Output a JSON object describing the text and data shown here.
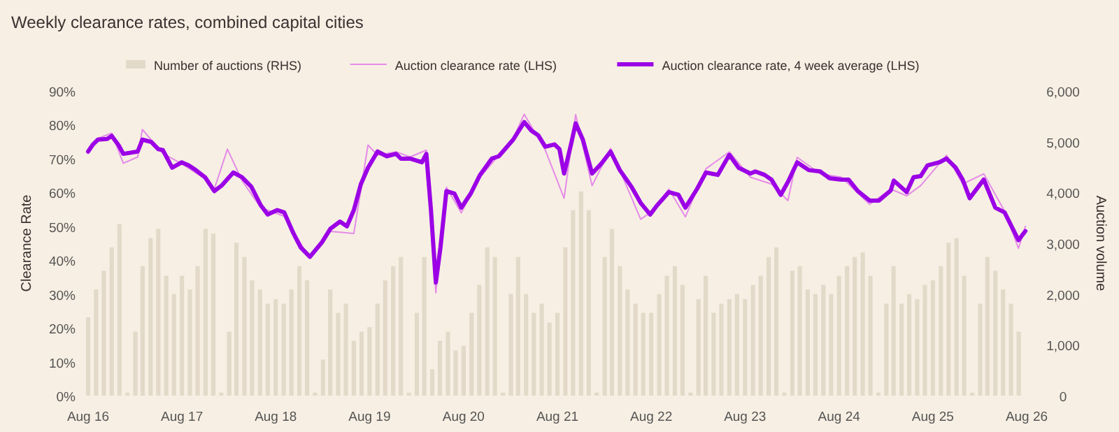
{
  "chart_data": {
    "type": "line",
    "title": "Weekly clearance rates, combined capital cities",
    "ylabel": "Clearance Rate",
    "y2label": "Auction volume",
    "legend": "top",
    "xlim": [
      "2016-08-01",
      "2026-08-01"
    ],
    "xticks": [
      {
        "value": "2016-08-01",
        "label": "Aug 16"
      },
      {
        "value": "2017-08-01",
        "label": "Aug 17"
      },
      {
        "value": "2018-08-01",
        "label": "Aug 18"
      },
      {
        "value": "2019-08-01",
        "label": "Aug 19"
      },
      {
        "value": "2020-08-01",
        "label": "Aug 20"
      },
      {
        "value": "2021-08-01",
        "label": "Aug 21"
      },
      {
        "value": "2022-08-01",
        "label": "Aug 22"
      },
      {
        "value": "2023-08-01",
        "label": "Aug 23"
      },
      {
        "value": "2024-08-01",
        "label": "Aug 24"
      },
      {
        "value": "2025-08-01",
        "label": "Aug 25"
      },
      {
        "value": "2026-08-01",
        "label": "Aug 26"
      }
    ],
    "ylim": [
      0,
      90
    ],
    "yticks": [
      {
        "value": 0,
        "label": "0%"
      },
      {
        "value": 10,
        "label": "10%"
      },
      {
        "value": 20,
        "label": "20%"
      },
      {
        "value": 30,
        "label": "30%"
      },
      {
        "value": 40,
        "label": "40%"
      },
      {
        "value": 50,
        "label": "50%"
      },
      {
        "value": 60,
        "label": "60%"
      },
      {
        "value": 70,
        "label": "70%"
      },
      {
        "value": 80,
        "label": "80%"
      },
      {
        "value": 90,
        "label": "90%"
      }
    ],
    "y2lim": [
      0,
      6000
    ],
    "y2ticks": [
      0,
      {
        "value": 1000,
        "label": "1,000"
      },
      {
        "value": 2000,
        "label": "2,000"
      },
      {
        "value": 3000,
        "label": "3,000"
      },
      {
        "value": 4000,
        "label": "4,000"
      },
      {
        "value": 5000,
        "label": "5,000"
      },
      {
        "value": 6000,
        "label": "6,000"
      }
    ],
    "series": [
      {
        "name": "Number of auctions (RHS)",
        "type": "bar",
        "axis": "y2",
        "color": "#e3d9c9",
        "x": [
          "2016-08",
          "2016-09",
          "2016-10",
          "2016-11",
          "2016-12",
          "2017-01",
          "2017-02",
          "2017-03",
          "2017-04",
          "2017-05",
          "2017-06",
          "2017-07",
          "2017-08",
          "2017-09",
          "2017-10",
          "2017-11",
          "2017-12",
          "2018-01",
          "2018-02",
          "2018-03",
          "2018-04",
          "2018-05",
          "2018-06",
          "2018-07",
          "2018-08",
          "2018-09",
          "2018-10",
          "2018-11",
          "2018-12",
          "2019-01",
          "2019-02",
          "2019-03",
          "2019-04",
          "2019-05",
          "2019-06",
          "2019-07",
          "2019-08",
          "2019-09",
          "2019-10",
          "2019-11",
          "2019-12",
          "2020-01",
          "2020-02",
          "2020-03",
          "2020-04",
          "2020-05",
          "2020-06",
          "2020-07",
          "2020-08",
          "2020-09",
          "2020-10",
          "2020-11",
          "2020-12",
          "2021-01",
          "2021-02",
          "2021-03",
          "2021-04",
          "2021-05",
          "2021-06",
          "2021-07",
          "2021-08",
          "2021-09",
          "2021-10",
          "2021-11",
          "2021-12",
          "2022-01",
          "2022-02",
          "2022-03",
          "2022-04",
          "2022-05",
          "2022-06",
          "2022-07",
          "2022-08",
          "2022-09",
          "2022-10",
          "2022-11",
          "2022-12",
          "2023-01",
          "2023-02",
          "2023-03",
          "2023-04",
          "2023-05",
          "2023-06",
          "2023-07",
          "2023-08",
          "2023-09",
          "2023-10",
          "2023-11",
          "2023-12",
          "2024-01",
          "2024-02",
          "2024-03",
          "2024-04",
          "2024-05",
          "2024-06",
          "2024-07",
          "2024-08",
          "2024-09",
          "2024-10",
          "2024-11",
          "2024-12",
          "2025-01",
          "2025-02",
          "2025-03",
          "2025-04",
          "2025-05",
          "2025-06",
          "2025-07",
          "2025-08",
          "2025-09",
          "2025-10",
          "2025-11",
          "2025-12",
          "2026-01",
          "2026-02",
          "2026-03",
          "2026-04",
          "2026-05",
          "2026-06",
          "2026-07"
        ],
        "values": [
          1540,
          2090,
          2460,
          2920,
          3380,
          60,
          1260,
          2550,
          3100,
          3280,
          2360,
          2000,
          2360,
          2090,
          2550,
          3280,
          3190,
          60,
          1260,
          3010,
          2730,
          2270,
          2090,
          1810,
          1900,
          1810,
          2090,
          2550,
          2270,
          60,
          710,
          2090,
          1630,
          1810,
          1080,
          1260,
          1350,
          1810,
          2270,
          2550,
          2730,
          60,
          1630,
          2730,
          520,
          1080,
          1260,
          890,
          980,
          1630,
          2180,
          2920,
          2730,
          60,
          2000,
          2730,
          2000,
          1630,
          1810,
          1440,
          1630,
          2920,
          3650,
          4020,
          3650,
          60,
          2730,
          3280,
          2550,
          2090,
          1810,
          1630,
          1630,
          2000,
          2360,
          2550,
          2180,
          60,
          1900,
          2360,
          1630,
          1810,
          1900,
          2000,
          1900,
          2180,
          2360,
          2730,
          2920,
          60,
          2460,
          2550,
          2090,
          2000,
          2180,
          2000,
          2360,
          2550,
          2730,
          2820,
          2360,
          60,
          1810,
          2550,
          1810,
          2000,
          1900,
          2180,
          2270,
          2550,
          3010,
          3100,
          2360,
          60,
          1810,
          2730,
          2460,
          2090,
          1810,
          1260
        ]
      },
      {
        "name": "Auction clearance rate (LHS)",
        "color": "#e58be8",
        "x": [
          "2016-08-01",
          "2016-09-08",
          "2016-11-01",
          "2016-12-16",
          "2017-02-10",
          "2017-02-28",
          "2017-05-19",
          "2017-07-31",
          "2017-10-30",
          "2017-12-05",
          "2018-01-25",
          "2018-03-23",
          "2018-06-04",
          "2018-09-03",
          "2018-12-12",
          "2019-03-02",
          "2019-06-01",
          "2019-07-26",
          "2019-09-01",
          "2019-11-12",
          "2020-01-06",
          "2020-03-09",
          "2020-04-15",
          "2020-05-26",
          "2020-07-23",
          "2020-10-04",
          "2021-02-10",
          "2021-03-25",
          "2021-06-15",
          "2021-08-27",
          "2021-10-11",
          "2021-12-14",
          "2022-02-24",
          "2022-06-21",
          "2022-07-28",
          "2022-10-09",
          "2022-12-12",
          "2023-03-02",
          "2023-06-01",
          "2023-08-22",
          "2023-11-12",
          "2024-01-15",
          "2024-02-20",
          "2024-05-20",
          "2024-08-10",
          "2024-11-28",
          "2025-02-18",
          "2025-04-21",
          "2025-06-14",
          "2025-09-23",
          "2025-11-25",
          "2026-02-15",
          "2026-05-07",
          "2026-06-30",
          "2026-07-27"
        ],
        "values": [
          71.5,
          76.0,
          77.5,
          68.6,
          70.5,
          78.6,
          71.5,
          68.5,
          64.0,
          61.0,
          72.8,
          63.5,
          55.5,
          53.0,
          40.5,
          48.5,
          47.9,
          74.0,
          71.0,
          72.0,
          70.5,
          72.5,
          30.4,
          61.5,
          54.0,
          64.5,
          76.0,
          83.1,
          72.5,
          58.3,
          83.0,
          62.0,
          73.0,
          52.1,
          54.0,
          61.0,
          52.8,
          67.0,
          72.0,
          64.5,
          62.5,
          57.6,
          70.4,
          65.5,
          64.5,
          56.5,
          61.0,
          59.0,
          62.0,
          71.0,
          62.5,
          65.5,
          54.5,
          43.5,
          50.0
        ]
      },
      {
        "name": "Auction clearance rate, 4 week average (LHS)",
        "color": "#9b00e6",
        "x": [
          "2016-08-01",
          "2016-08-20",
          "2016-09-08",
          "2016-10-14",
          "2016-11-01",
          "2016-11-28",
          "2016-12-16",
          "2017-02-10",
          "2017-02-28",
          "2017-04-04",
          "2017-05-01",
          "2017-05-19",
          "2017-06-24",
          "2017-07-31",
          "2017-08-27",
          "2017-09-24",
          "2017-10-30",
          "2017-12-05",
          "2018-01-02",
          "2018-02-17",
          "2018-03-23",
          "2018-04-28",
          "2018-06-04",
          "2018-07-01",
          "2018-08-07",
          "2018-09-03",
          "2018-10-09",
          "2018-11-06",
          "2018-12-12",
          "2019-01-27",
          "2019-03-02",
          "2019-04-08",
          "2019-05-05",
          "2019-06-01",
          "2019-06-28",
          "2019-07-26",
          "2019-09-01",
          "2019-10-07",
          "2019-11-12",
          "2019-12-01",
          "2020-01-06",
          "2020-02-21",
          "2020-03-09",
          "2020-03-27",
          "2020-04-15",
          "2020-05-03",
          "2020-05-26",
          "2020-06-26",
          "2020-07-23",
          "2020-08-29",
          "2020-10-04",
          "2020-11-19",
          "2020-12-16",
          "2021-02-10",
          "2021-03-25",
          "2021-04-21",
          "2021-05-18",
          "2021-06-15",
          "2021-07-21",
          "2021-08-09",
          "2021-08-27",
          "2021-09-23",
          "2021-10-11",
          "2021-11-08",
          "2021-12-14",
          "2022-01-20",
          "2022-02-24",
          "2022-04-01",
          "2022-05-16",
          "2022-06-21",
          "2022-07-28",
          "2022-08-24",
          "2022-10-09",
          "2022-11-15",
          "2022-12-12",
          "2023-01-26",
          "2023-03-02",
          "2023-04-17",
          "2023-06-01",
          "2023-07-07",
          "2023-08-22",
          "2023-09-10",
          "2023-10-16",
          "2023-11-12",
          "2023-12-18",
          "2024-01-15",
          "2024-02-20",
          "2024-04-05",
          "2024-05-20",
          "2024-06-25",
          "2024-08-10",
          "2024-09-07",
          "2024-10-13",
          "2024-11-28",
          "2025-01-03",
          "2025-02-18",
          "2025-03-02",
          "2025-04-21",
          "2025-05-18",
          "2025-06-14",
          "2025-07-11",
          "2025-08-26",
          "2025-09-23",
          "2025-10-29",
          "2025-11-25",
          "2025-12-22",
          "2026-02-15",
          "2026-04-01",
          "2026-05-07",
          "2026-06-30",
          "2026-07-27"
        ],
        "values": [
          72.1,
          74.2,
          75.6,
          75.8,
          76.7,
          73.9,
          71.4,
          72.1,
          75.6,
          74.9,
          72.8,
          72.5,
          67.3,
          68.9,
          68.0,
          66.6,
          64.5,
          60.4,
          62.0,
          65.9,
          64.5,
          61.7,
          56.2,
          53.5,
          54.8,
          54.1,
          47.9,
          43.8,
          41.0,
          45.2,
          49.3,
          51.4,
          50.0,
          54.8,
          62.4,
          67.3,
          72.1,
          70.7,
          71.4,
          70.0,
          70.0,
          68.9,
          71.4,
          54.8,
          33.4,
          43.8,
          60.4,
          59.7,
          55.5,
          59.7,
          65.2,
          70.0,
          70.7,
          75.6,
          80.8,
          78.3,
          76.9,
          73.5,
          74.2,
          72.8,
          65.6,
          74.2,
          80.4,
          75.6,
          65.6,
          68.6,
          72.1,
          66.6,
          61.7,
          56.9,
          53.5,
          56.2,
          60.1,
          59.3,
          55.5,
          61.0,
          65.9,
          65.2,
          71.1,
          67.3,
          65.6,
          66.2,
          65.2,
          63.8,
          59.3,
          63.1,
          68.9,
          66.6,
          66.2,
          64.2,
          63.8,
          63.8,
          60.4,
          57.6,
          57.6,
          60.6,
          63.5,
          60.1,
          64.5,
          64.8,
          68.0,
          68.9,
          70.0,
          67.3,
          63.8,
          58.3,
          63.8,
          55.5,
          54.1,
          45.9,
          48.6
        ]
      }
    ]
  }
}
